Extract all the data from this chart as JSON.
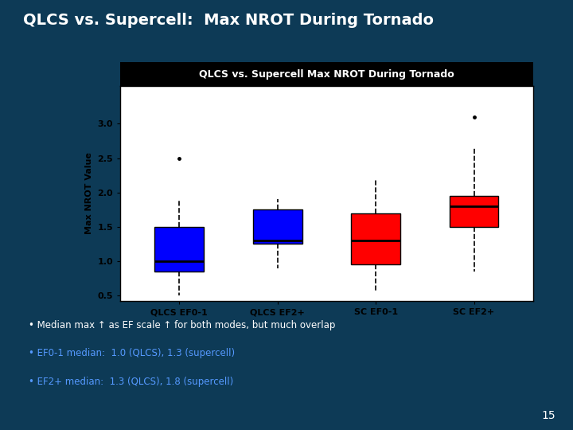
{
  "title_main": "QLCS vs. Supercell:  Max NROT During Tornado",
  "chart_title": "QLCS vs. Supercell Max NROT During Tornado",
  "ylabel": "Max NROT Value",
  "categories": [
    "QLCS EF0-1",
    "QLCS EF2+",
    "SC EF0-1",
    "SC EF2+"
  ],
  "colors": [
    "blue",
    "blue",
    "red",
    "red"
  ],
  "ylim": [
    0.42,
    3.55
  ],
  "yticks": [
    0.5,
    1.0,
    1.5,
    2.0,
    2.5,
    3.0
  ],
  "box_data": {
    "QLCS EF0-1": {
      "whislo": 0.5,
      "q1": 0.85,
      "med": 1.0,
      "q3": 1.5,
      "whishi": 1.9,
      "fliers": [
        2.5
      ]
    },
    "QLCS EF2+": {
      "whislo": 0.9,
      "q1": 1.25,
      "med": 1.3,
      "q3": 1.75,
      "whishi": 1.9,
      "fliers": []
    },
    "SC EF0-1": {
      "whislo": 0.55,
      "q1": 0.95,
      "med": 1.3,
      "q3": 1.7,
      "whishi": 2.2,
      "fliers": []
    },
    "SC EF2+": {
      "whislo": 0.85,
      "q1": 1.5,
      "med": 1.8,
      "q3": 1.95,
      "whishi": 2.65,
      "fliers": [
        3.1
      ]
    }
  },
  "bullet_texts": [
    "Median max ↑ as EF scale ↑ for both modes, but much overlap",
    "EF0-1 median:  1.0 (QLCS), 1.3 (supercell)",
    "EF2+ median:  1.3 (QLCS), 1.8 (supercell)"
  ],
  "bullet_colors": [
    "white",
    "#5599ff",
    "#5599ff"
  ],
  "background_slide": "#0d3a56",
  "chart_bg": "white",
  "chart_title_bg": "black",
  "chart_title_color": "white",
  "page_number": "15"
}
